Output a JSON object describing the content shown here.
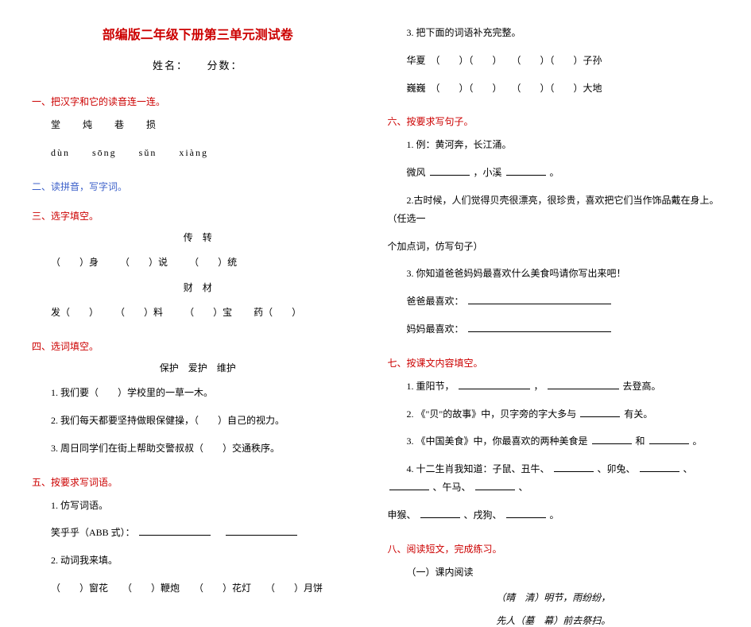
{
  "colors": {
    "title_red": "#cc0000",
    "section_red": "#cc0000",
    "section_blue": "#3b5fc9",
    "text_black": "#000000",
    "background": "#ffffff"
  },
  "typography": {
    "title_fontsize": 16,
    "body_fontsize": 12,
    "font_family": "SimSun"
  },
  "title": "部编版二年级下册第三单元测试卷",
  "subtitle": "姓名：　　分数：",
  "sec1": {
    "head": "一、把汉字和它的读音连一连。",
    "chars": "堂炖巷损",
    "pinyin": "dùn　　sōng　　sǔn　　xiàng"
  },
  "sec2": {
    "head": "二、读拼音，写字词。"
  },
  "sec3": {
    "head": "三、选字填空。",
    "pair1": "传　转",
    "row1_a": "（　　）身",
    "row1_b": "（　　）说",
    "row1_c": "（　　）统",
    "pair2": "财　材",
    "row2_a": "发（　　）",
    "row2_b": "（　　）料",
    "row2_c": "（　　）宝",
    "row2_d": "药（　　）"
  },
  "sec4": {
    "head": "四、选词填空。",
    "words": "保护　爱护　维护",
    "q1": "1. 我们要（　　）学校里的一草一木。",
    "q2": "2. 我们每天都要坚持做眼保健操，（　　）自己的视力。",
    "q3": "3. 周日同学们在街上帮助交警叔叔（　　）交通秩序。"
  },
  "sec5": {
    "head": "五、按要求写词语。",
    "q1": "1. 仿写词语。",
    "q1a": "笑乎乎（ABB 式）：",
    "q2": "2. 动词我来填。",
    "q2a": "（　　）窗花　　（　　）鞭炮　　（　　）花灯　　（　　）月饼",
    "q3": "3. 把下面的词语补充完整。",
    "q3a": "华夏　（　　）（　　）　　（　　）（　　）子孙",
    "q3b": "巍巍　（　　）（　　）　　（　　）（　　）大地"
  },
  "sec6": {
    "head": "六、按要求写句子。",
    "q1": "1. 例：黄河奔，长江涌。",
    "q1a_prefix": "微风",
    "q1a_mid": "，小溪",
    "q1a_suffix": "。",
    "q2": "2.古时候，人们觉得贝壳很漂亮，很珍贵，喜欢把它们当作饰品戴在身上。（任选一",
    "q2b": "个加点词，仿写句子）",
    "q3": "3. 你知道爸爸妈妈最喜欢什么美食吗请你写出来吧！",
    "q3a": "爸爸最喜欢：",
    "q3b": "妈妈最喜欢："
  },
  "sec7": {
    "head": "七、按课文内容填空。",
    "q1_a": "1. 重阳节，",
    "q1_b": "，",
    "q1_c": "去登高。",
    "q2_a": "2. 《\"贝\"的故事》中，贝字旁的字大多与",
    "q2_b": "有关。",
    "q3_a": "3. 《中国美食》中，你最喜欢的两种美食是",
    "q3_b": "和",
    "q3_c": "。",
    "q4_a": "4. 十二生肖我知道：子鼠、丑牛、",
    "q4_b": "、卯兔、",
    "q4_c": "、",
    "q4_d": "、午马、",
    "q4_e": "、",
    "q4_f": "申猴、",
    "q4_g": "、戌狗、",
    "q4_h": "。"
  },
  "sec8": {
    "head": "八、阅读短文，完成练习。",
    "sub": "（一）课内阅读",
    "poem1": "（晴　清）明节，雨纷纷，",
    "poem2": "先人（墓　幕）前去祭扫。"
  }
}
